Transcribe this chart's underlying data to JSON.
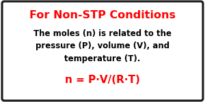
{
  "title": "For Non-STP Conditions",
  "title_color": "#ff0000",
  "title_fontsize": 11.5,
  "title_weight": "bold",
  "body_text": "The moles (n) is related to the\npressure (P), volume (V), and\ntemperature (T).",
  "body_color": "#000000",
  "body_fontsize": 8.5,
  "body_weight": "bold",
  "formula": "n = P·V/(R·T)",
  "formula_color": "#ff0000",
  "formula_fontsize": 11,
  "formula_weight": "bold",
  "bg_color": "#ffffff",
  "border_color": "#1a1a1a",
  "fig_width": 3.0,
  "fig_height": 1.5,
  "dpi": 100
}
